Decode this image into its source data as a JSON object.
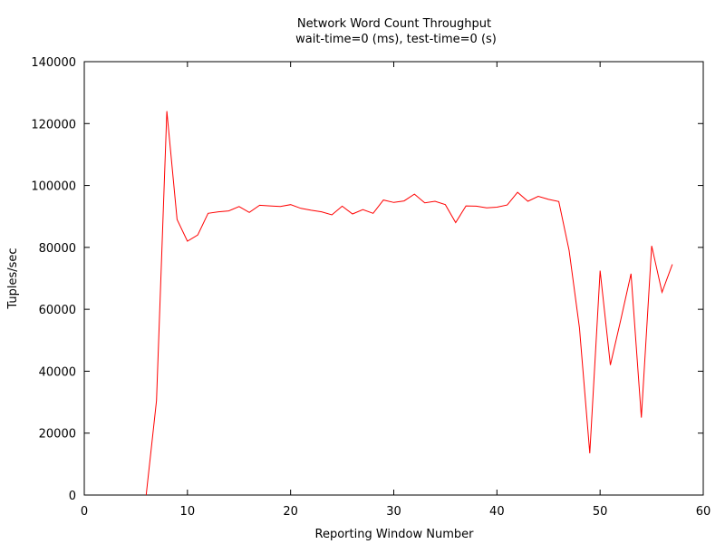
{
  "chart_data": {
    "type": "line",
    "title": "Network Word Count Throughput",
    "subtitle": "wait-time=0 (ms), test-time=0 (s)",
    "xlabel": "Reporting Window Number",
    "ylabel": "Tuples/sec",
    "xlim": [
      0,
      60
    ],
    "ylim": [
      0,
      140000
    ],
    "xticks": [
      0,
      10,
      20,
      30,
      40,
      50,
      60
    ],
    "yticks": [
      0,
      20000,
      40000,
      60000,
      80000,
      100000,
      120000,
      140000
    ],
    "grid": false,
    "line_color": "#ff0000",
    "series": [
      {
        "x": [
          6,
          7,
          8,
          9,
          10,
          11,
          12,
          13,
          14,
          15,
          16,
          17,
          18,
          19,
          20,
          21,
          22,
          23,
          24,
          25,
          26,
          27,
          28,
          29,
          30,
          31,
          32,
          33,
          34,
          35,
          36,
          37,
          38,
          39,
          40,
          41,
          42,
          43,
          44,
          45,
          46,
          47,
          48,
          49,
          50,
          51,
          52,
          53,
          54,
          55,
          56,
          57
        ],
        "values": [
          0,
          30500,
          124000,
          89000,
          82000,
          84000,
          91000,
          91500,
          91800,
          93200,
          91300,
          93600,
          93400,
          93200,
          93800,
          92600,
          92000,
          91500,
          90500,
          93300,
          90800,
          92200,
          91000,
          95300,
          94500,
          95000,
          97200,
          94400,
          94900,
          93800,
          88000,
          93400,
          93300,
          92800,
          93000,
          93700,
          97800,
          94900,
          96500,
          95500,
          94800,
          79000,
          54000,
          13500,
          72500,
          42000,
          56500,
          71500,
          25000,
          80500,
          65500,
          74500
        ]
      }
    ]
  }
}
